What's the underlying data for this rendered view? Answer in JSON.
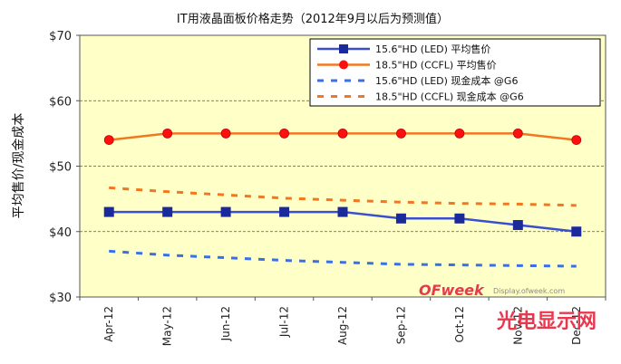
{
  "chart_data": {
    "type": "line",
    "title": "IT用液晶面板价格走势（2012年9月以后为预测值）",
    "ylabel": "平均售价/现金成本",
    "xlabel": "",
    "categories": [
      "Apr-12",
      "May-12",
      "Jun-12",
      "Jul-12",
      "Aug-12",
      "Sep-12",
      "Oct-12",
      "Nov-12",
      "Dec-12"
    ],
    "ylim": [
      30,
      70
    ],
    "yticks": [
      30,
      40,
      50,
      60,
      70
    ],
    "ytick_labels": [
      "$30",
      "$40",
      "$50",
      "$60",
      "$70"
    ],
    "grid": "horizontal dashed",
    "legend_position": "top-right",
    "series": [
      {
        "name": "15.6\"HD (LED) 平均售价",
        "color": "#3a4fd0",
        "marker": "square",
        "style": "solid",
        "values": [
          43,
          43,
          43,
          43,
          43,
          42,
          42,
          41,
          40
        ]
      },
      {
        "name": "18.5\"HD (CCFL) 平均售价",
        "color": "#f07820",
        "marker": "circle",
        "marker_color": "#ff1010",
        "style": "solid",
        "values": [
          54,
          55,
          55,
          55,
          55,
          55,
          55,
          55,
          54
        ]
      },
      {
        "name": "15.6\"HD (LED) 现金成本 @G6",
        "color": "#3a6fe8",
        "marker": "none",
        "style": "dashed",
        "values": [
          37,
          36.4,
          36,
          35.6,
          35.3,
          35,
          34.9,
          34.8,
          34.7
        ]
      },
      {
        "name": "18.5\"HD (CCFL) 现金成本 @G6",
        "color": "#f07820",
        "marker": "none",
        "style": "dashed",
        "values": [
          46.7,
          46.1,
          45.6,
          45.1,
          44.8,
          44.5,
          44.3,
          44.2,
          44.0
        ]
      }
    ]
  },
  "watermark": {
    "logo": "OFweek",
    "site": "Display.ofweek.com",
    "brand": "光电显示网"
  },
  "colors": {
    "plot_background": "#ffffc8",
    "frame": "#555555",
    "grid": "#555555"
  }
}
